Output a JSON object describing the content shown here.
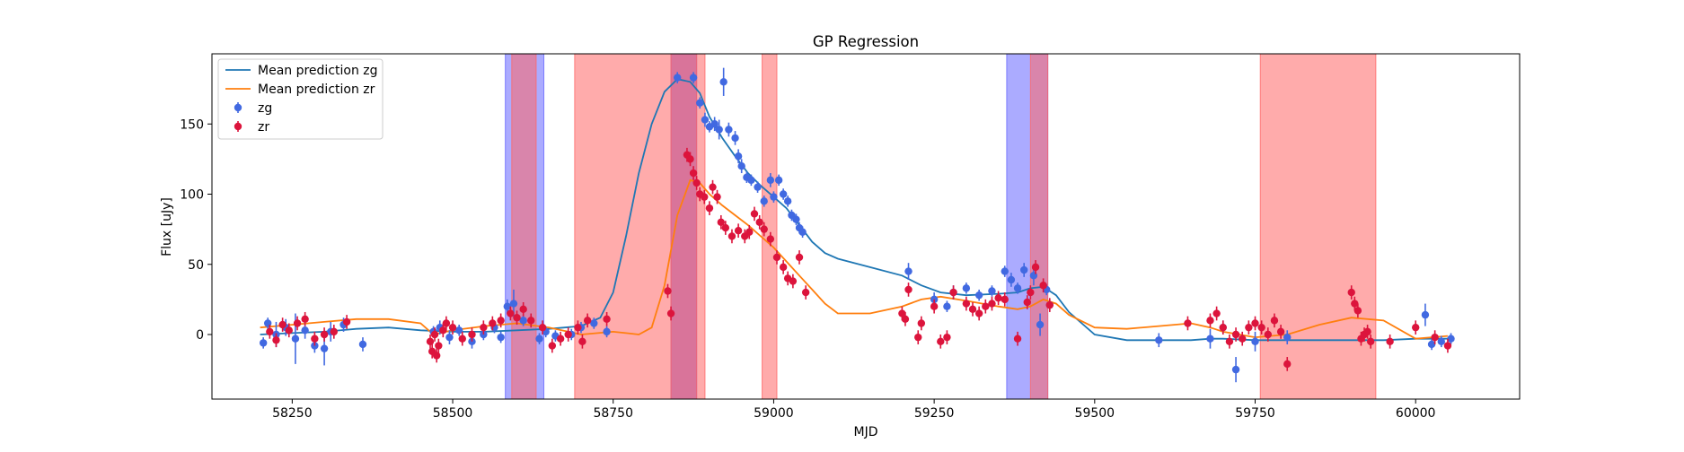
{
  "chart_data": {
    "type": "scatter",
    "title": "GP Regression",
    "xlabel": "MJD",
    "ylabel": "Flux [uJy]",
    "xlim": [
      58125,
      60162
    ],
    "ylim": [
      -46,
      200
    ],
    "xticks": [
      58250,
      58500,
      58750,
      59000,
      59250,
      59500,
      59750,
      60000
    ],
    "yticks": [
      0,
      50,
      100,
      150
    ],
    "grid": false,
    "legend_position": "top-left",
    "legend": [
      {
        "label": "Mean prediction zg",
        "kind": "line",
        "color": "#1f77b4"
      },
      {
        "label": "Mean prediction zr",
        "kind": "line",
        "color": "#ff7f0e"
      },
      {
        "label": "zg",
        "kind": "marker",
        "color": "#4169e1"
      },
      {
        "label": "zr",
        "kind": "marker",
        "color": "#dc143c"
      }
    ],
    "shaded_regions": [
      {
        "band": "zg",
        "color": "#6666ff",
        "x0": 58582,
        "x1": 58642
      },
      {
        "band": "zr",
        "color": "#ff6666",
        "x0": 58592,
        "x1": 58630
      },
      {
        "band": "zr",
        "color": "#ff6666",
        "x0": 58690,
        "x1": 58893
      },
      {
        "band": "zg",
        "color": "#6666ff",
        "x0": 58840,
        "x1": 58880
      },
      {
        "band": "zr",
        "color": "#ff6666",
        "x0": 58840,
        "x1": 58880
      },
      {
        "band": "zr",
        "color": "#ff6666",
        "x0": 58982,
        "x1": 59005
      },
      {
        "band": "zg",
        "color": "#6666ff",
        "x0": 59363,
        "x1": 59427
      },
      {
        "band": "zr",
        "color": "#ff6666",
        "x0": 59400,
        "x1": 59427
      },
      {
        "band": "zr",
        "color": "#ff6666",
        "x0": 59758,
        "x1": 59938
      }
    ],
    "series": [
      {
        "name": "Mean prediction zg",
        "kind": "line",
        "color": "#1f77b4",
        "x": [
          58200,
          58250,
          58300,
          58350,
          58400,
          58450,
          58500,
          58550,
          58600,
          58650,
          58700,
          58730,
          58750,
          58770,
          58790,
          58810,
          58830,
          58850,
          58870,
          58885,
          58900,
          58920,
          58940,
          58960,
          58980,
          59000,
          59020,
          59040,
          59060,
          59080,
          59100,
          59150,
          59200,
          59230,
          59260,
          59300,
          59350,
          59380,
          59400,
          59420,
          59440,
          59460,
          59500,
          59550,
          59600,
          59650,
          59680,
          59700,
          59750,
          59800,
          59850,
          59900,
          59950,
          60000,
          60050
        ],
        "y": [
          0,
          1,
          2,
          4,
          5,
          3,
          2,
          2,
          3,
          4,
          6,
          12,
          30,
          70,
          115,
          150,
          173,
          182,
          180,
          172,
          155,
          140,
          127,
          115,
          106,
          98,
          90,
          78,
          66,
          58,
          54,
          48,
          42,
          35,
          30,
          28,
          29,
          30,
          33,
          34,
          28,
          16,
          0,
          -4,
          -4,
          -4,
          -3,
          -3,
          -4,
          -4,
          -4,
          -4,
          -4,
          -3,
          -3
        ]
      },
      {
        "name": "Mean prediction zr",
        "kind": "line",
        "color": "#ff7f0e",
        "x": [
          58200,
          58250,
          58300,
          58350,
          58400,
          58450,
          58470,
          58500,
          58550,
          58600,
          58650,
          58700,
          58750,
          58770,
          58790,
          58810,
          58830,
          58850,
          58870,
          58885,
          58900,
          58920,
          58940,
          58960,
          58980,
          59000,
          59020,
          59040,
          59060,
          59080,
          59100,
          59150,
          59200,
          59230,
          59260,
          59300,
          59350,
          59380,
          59400,
          59420,
          59440,
          59460,
          59500,
          59550,
          59600,
          59650,
          59680,
          59700,
          59750,
          59800,
          59850,
          59900,
          59950,
          60000,
          60050
        ],
        "y": [
          5,
          7,
          9,
          11,
          11,
          8,
          0,
          3,
          6,
          8,
          5,
          0,
          2,
          1,
          0,
          5,
          35,
          85,
          110,
          108,
          100,
          92,
          85,
          78,
          70,
          62,
          52,
          42,
          32,
          22,
          15,
          15,
          20,
          25,
          27,
          24,
          20,
          18,
          20,
          25,
          22,
          14,
          5,
          4,
          6,
          8,
          5,
          2,
          -2,
          0,
          7,
          12,
          10,
          -3,
          -1
        ]
      },
      {
        "name": "zg",
        "kind": "points",
        "color": "#4169e1",
        "x": [
          58205,
          58212,
          58225,
          58240,
          58255,
          58270,
          58285,
          58300,
          58310,
          58330,
          58360,
          58470,
          58480,
          58495,
          58510,
          58530,
          58548,
          58565,
          58575,
          58585,
          58595,
          58610,
          58635,
          58645,
          58660,
          58685,
          58700,
          58720,
          58740,
          58850,
          58875,
          58885,
          58893,
          58900,
          58908,
          58915,
          58922,
          58930,
          58940,
          58945,
          58950,
          58958,
          58965,
          58975,
          58985,
          58995,
          59000,
          59008,
          59015,
          59022,
          59028,
          59035,
          59040,
          59045,
          59210,
          59250,
          59270,
          59280,
          59300,
          59320,
          59340,
          59360,
          59370,
          59380,
          59390,
          59405,
          59415,
          59425,
          59430,
          59600,
          59680,
          59700,
          59720,
          59750,
          59800,
          60015,
          60025,
          60040,
          60055
        ],
        "y": [
          -6,
          8,
          0,
          5,
          -3,
          3,
          -8,
          -10,
          2,
          7,
          -7,
          2,
          5,
          -2,
          3,
          -5,
          0,
          5,
          -2,
          20,
          22,
          10,
          -3,
          2,
          -1,
          0,
          5,
          8,
          2,
          183,
          183,
          165,
          153,
          148,
          150,
          146,
          180,
          146,
          140,
          127,
          120,
          112,
          110,
          105,
          95,
          110,
          98,
          110,
          100,
          95,
          85,
          82,
          76,
          73,
          45,
          25,
          20,
          30,
          33,
          28,
          31,
          45,
          39,
          33,
          46,
          42,
          7,
          32,
          21,
          -4,
          -3,
          5,
          -25,
          -5,
          -2,
          14,
          -7,
          -5,
          -3
        ],
        "err": [
          4,
          4,
          9,
          6,
          18,
          6,
          5,
          12,
          7,
          5,
          5,
          4,
          5,
          5,
          4,
          5,
          4,
          4,
          4,
          5,
          10,
          4,
          4,
          4,
          4,
          4,
          4,
          4,
          4,
          4,
          4,
          4,
          5,
          4,
          5,
          7,
          10,
          5,
          5,
          5,
          5,
          4,
          4,
          4,
          4,
          5,
          4,
          4,
          4,
          4,
          4,
          4,
          4,
          4,
          6,
          5,
          4,
          5,
          4,
          4,
          4,
          4,
          5,
          4,
          5,
          7,
          8,
          4,
          4,
          5,
          7,
          5,
          9,
          7,
          5,
          8,
          4,
          4,
          4
        ]
      },
      {
        "name": "zr",
        "kind": "points",
        "color": "#dc143c",
        "x": [
          58215,
          58225,
          58235,
          58245,
          58258,
          58270,
          58285,
          58300,
          58315,
          58335,
          58465,
          58468,
          58472,
          58475,
          58478,
          58485,
          58490,
          58500,
          58515,
          58530,
          58548,
          58562,
          58575,
          58590,
          58600,
          58610,
          58622,
          58640,
          58655,
          58668,
          58680,
          58695,
          58702,
          58710,
          58740,
          58835,
          58840,
          58865,
          58870,
          58875,
          58880,
          58885,
          58892,
          58900,
          58905,
          58912,
          58918,
          58925,
          58935,
          58945,
          58955,
          58962,
          58970,
          58978,
          58985,
          58995,
          59005,
          59015,
          59022,
          59030,
          59040,
          59050,
          59200,
          59205,
          59210,
          59225,
          59230,
          59250,
          59260,
          59270,
          59280,
          59300,
          59310,
          59320,
          59330,
          59340,
          59350,
          59360,
          59380,
          59395,
          59400,
          59408,
          59420,
          59430,
          59645,
          59680,
          59690,
          59700,
          59710,
          59720,
          59730,
          59740,
          59750,
          59760,
          59770,
          59780,
          59790,
          59800,
          59900,
          59905,
          59910,
          59915,
          59920,
          59925,
          59930,
          59960,
          60000,
          60030,
          60050
        ],
        "y": [
          2,
          -4,
          7,
          3,
          8,
          11,
          -3,
          0,
          2,
          9,
          -5,
          -12,
          0,
          -15,
          -8,
          3,
          8,
          5,
          -3,
          0,
          5,
          8,
          10,
          15,
          12,
          18,
          10,
          5,
          -8,
          -3,
          0,
          5,
          -5,
          10,
          11,
          31,
          15,
          128,
          125,
          115,
          108,
          100,
          98,
          90,
          105,
          98,
          80,
          76,
          70,
          74,
          70,
          73,
          86,
          80,
          75,
          68,
          55,
          48,
          40,
          38,
          55,
          30,
          15,
          11,
          32,
          -2,
          8,
          20,
          -5,
          -2,
          30,
          22,
          18,
          15,
          20,
          22,
          26,
          25,
          -3,
          23,
          30,
          48,
          35,
          21,
          8,
          10,
          15,
          5,
          -5,
          0,
          -3,
          5,
          8,
          5,
          0,
          10,
          2,
          -21,
          30,
          22,
          17,
          -3,
          0,
          2,
          -5,
          -5,
          5,
          -2,
          -8
        ]
      }
    ]
  }
}
